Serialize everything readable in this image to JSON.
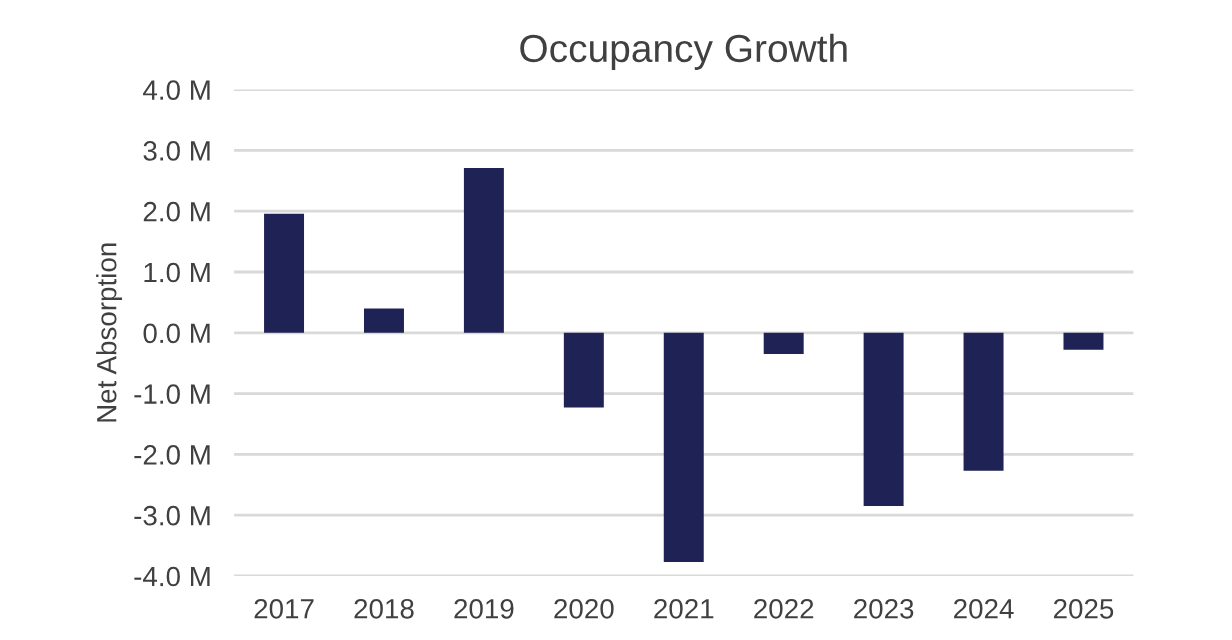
{
  "chart_data": {
    "type": "bar",
    "title": "Occupancy Growth",
    "ylabel": "Net Absorption",
    "categories": [
      "2017",
      "2018",
      "2019",
      "2020",
      "2021",
      "2022",
      "2023",
      "2024",
      "2025"
    ],
    "values": [
      1.96,
      0.4,
      2.71,
      -1.23,
      -3.77,
      -0.35,
      -2.85,
      -2.27,
      -0.28
    ],
    "color": "#1e2254",
    "ylim": [
      -4,
      4
    ],
    "yticks": [
      {
        "value": -4,
        "label": "-4.0 M"
      },
      {
        "value": -3,
        "label": "-3.0 M"
      },
      {
        "value": -2,
        "label": "-2.0 M"
      },
      {
        "value": -1,
        "label": "-1.0 M"
      },
      {
        "value": 0,
        "label": "0.0 M"
      },
      {
        "value": 1,
        "label": "1.0 M"
      },
      {
        "value": 2,
        "label": "2.0 M"
      },
      {
        "value": 3,
        "label": "3.0 M"
      },
      {
        "value": 4,
        "label": "4.0 M"
      }
    ],
    "grid": "y",
    "legend": false
  }
}
